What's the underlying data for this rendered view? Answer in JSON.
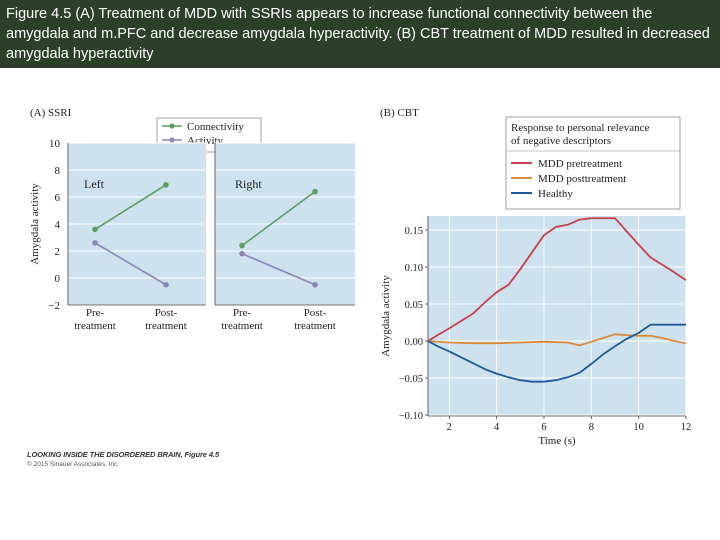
{
  "header": {
    "caption": "Figure 4.5 (A) Treatment of MDD with SSRIs appears to increase functional connectivity between the amygdala and m.PFC and decrease amygdala hyperactivity. (B) CBT treatment of MDD resulted in decreased amygdala hyperactivity"
  },
  "credit": {
    "title": "LOOKING INSIDE THE DISORDERED BRAIN, Figure 4.5",
    "copyright": "© 2015 Sinauer Associates, Inc."
  },
  "chart_data": [
    {
      "type": "line",
      "panel_label": "(A) SSRI",
      "ylabel": "Amygdala activity",
      "ylim": [
        -2,
        10
      ],
      "yticks": [
        -2,
        0,
        2,
        4,
        6,
        8,
        10
      ],
      "categories": [
        "Pre-\ntreatment",
        "Post-\ntreatment"
      ],
      "legend": [
        "Connectivity",
        "Activity"
      ],
      "colors": {
        "Connectivity": "#5c9e62",
        "Activity": "#8a86b5",
        "plot_bg": "#cde1ef"
      },
      "subplots": [
        {
          "title": "Left",
          "series": [
            {
              "name": "Connectivity",
              "values": [
                3.6,
                6.9
              ]
            },
            {
              "name": "Activity",
              "values": [
                2.6,
                -0.5
              ]
            }
          ]
        },
        {
          "title": "Right",
          "series": [
            {
              "name": "Connectivity",
              "values": [
                2.4,
                6.4
              ]
            },
            {
              "name": "Activity",
              "values": [
                1.8,
                -0.5
              ]
            }
          ]
        }
      ]
    },
    {
      "type": "line",
      "panel_label": "(B) CBT",
      "xlabel": "Time (s)",
      "ylabel": "Amygdala activity",
      "xlim": [
        1.1,
        12
      ],
      "xticks": [
        2,
        4,
        6,
        8,
        10,
        12
      ],
      "ylim": [
        -0.1,
        0.17
      ],
      "yticks": [
        -0.1,
        -0.05,
        0.0,
        0.05,
        0.1,
        0.15
      ],
      "ytick_labels": [
        "−0.10",
        "−0.05",
        "0.00",
        "0.05",
        "0.10",
        "0.15"
      ],
      "legend_title": "Response to personal relevance of negative descriptors",
      "colors": {
        "MDD pretreatment": "#c8404a",
        "MDD posttreatment": "#d98b3a",
        "Healthy": "#1e5a9a",
        "plot_bg": "#cde1ef"
      },
      "series": [
        {
          "name": "MDD pretreatment",
          "x": [
            1.1,
            1.5,
            2,
            2.5,
            3,
            3.5,
            4,
            4.5,
            5,
            5.5,
            6,
            6.5,
            7,
            7.5,
            8,
            8.5,
            9,
            9.5,
            10,
            10.5,
            11,
            11.5,
            12
          ],
          "y": [
            0.0,
            0.008,
            0.017,
            0.027,
            0.037,
            0.052,
            0.066,
            0.076,
            0.097,
            0.12,
            0.143,
            0.154,
            0.157,
            0.164,
            0.166,
            0.166,
            0.166,
            0.148,
            0.13,
            0.113,
            0.103,
            0.093,
            0.082
          ]
        },
        {
          "name": "MDD posttreatment",
          "x": [
            1.1,
            2,
            3,
            4,
            5,
            6,
            7,
            7.5,
            8,
            8.5,
            9,
            9.5,
            10,
            10.5,
            11,
            11.5,
            12
          ],
          "y": [
            0.0,
            -0.002,
            -0.003,
            -0.003,
            -0.002,
            -0.001,
            -0.002,
            -0.006,
            -0.001,
            0.004,
            0.009,
            0.008,
            0.007,
            0.007,
            0.004,
            0.0,
            -0.003
          ]
        },
        {
          "name": "Healthy",
          "x": [
            1.1,
            1.5,
            2,
            2.5,
            3,
            3.5,
            4,
            4.5,
            5,
            5.5,
            6,
            6.5,
            7,
            7.5,
            8,
            8.5,
            9,
            9.5,
            10,
            10.5,
            11,
            11.5,
            12
          ],
          "y": [
            0.0,
            -0.007,
            -0.014,
            -0.022,
            -0.03,
            -0.038,
            -0.044,
            -0.049,
            -0.053,
            -0.055,
            -0.055,
            -0.053,
            -0.049,
            -0.043,
            -0.031,
            -0.018,
            -0.007,
            0.003,
            0.011,
            0.022,
            0.022,
            0.022,
            0.022
          ]
        }
      ]
    }
  ]
}
